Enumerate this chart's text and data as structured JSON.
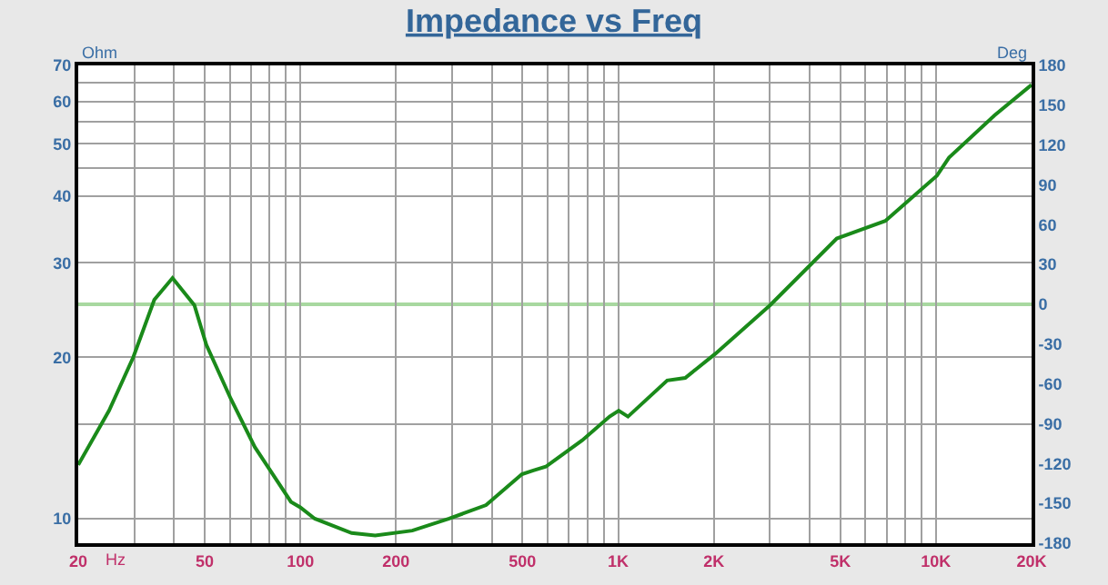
{
  "chart_data": {
    "type": "line",
    "title": "Impedance vs Freq",
    "xlabel": "Hz",
    "ylabel": "Ohm",
    "y2label": "Deg",
    "log": "xy",
    "grid": true,
    "marker": "none",
    "line_style": "solid",
    "xlim": [
      20,
      20000
    ],
    "xticks": [
      20,
      {
        "value": 30,
        "label": null
      },
      {
        "value": 40,
        "label": null
      },
      50,
      {
        "value": 60,
        "label": null
      },
      {
        "value": 70,
        "label": null
      },
      {
        "value": 80,
        "label": null
      },
      {
        "value": 90,
        "label": null
      },
      100,
      200,
      {
        "value": 300,
        "label": null
      },
      {
        "value": 400,
        "label": null
      },
      500,
      {
        "value": 600,
        "label": null
      },
      {
        "value": 700,
        "label": null
      },
      {
        "value": 800,
        "label": null
      },
      {
        "value": 900,
        "label": null
      },
      {
        "value": 1000,
        "label": "1K"
      },
      {
        "value": 2000,
        "label": "2K"
      },
      {
        "value": 3000,
        "label": null
      },
      {
        "value": 4000,
        "label": null
      },
      {
        "value": 5000,
        "label": "5K"
      },
      {
        "value": 6000,
        "label": null
      },
      {
        "value": 7000,
        "label": null
      },
      {
        "value": 8000,
        "label": null
      },
      {
        "value": 9000,
        "label": null
      },
      {
        "value": 10000,
        "label": "10K"
      },
      {
        "value": 20000,
        "label": "20K"
      }
    ],
    "ylim": [
      9,
      70
    ],
    "yticks": [
      10,
      {
        "value": 15,
        "label": null
      },
      20,
      30,
      40,
      {
        "value": 45,
        "label": null
      },
      50,
      {
        "value": 55,
        "label": null
      },
      60,
      {
        "value": 65,
        "label": null
      },
      70
    ],
    "y2lim": [
      -180,
      180
    ],
    "y2ticks": [
      -180,
      -150,
      -120,
      -90,
      -60,
      -30,
      0,
      30,
      60,
      90,
      120,
      150,
      180
    ],
    "ref_lines": [
      {
        "axis": "y2",
        "value": 0,
        "color": "#a8d8a0"
      }
    ],
    "x": [
      20,
      25,
      29.8,
      34.7,
      39.6,
      46.4,
      50.6,
      60.5,
      71.9,
      93.4,
      99.9,
      111,
      145,
      172,
      225,
      294,
      384,
      498,
      541,
      592,
      771,
      940,
      1004,
      1074,
      1427,
      1626,
      2023,
      3007,
      4875,
      6930,
      10070,
      10990,
      15290,
      20000
    ],
    "series": [
      {
        "color": "#1a8a1a",
        "values": [
          12.6,
          15.9,
          20,
          25.6,
          28.1,
          25,
          21.1,
          16.7,
          13.6,
          10.75,
          10.5,
          10,
          9.4,
          9.3,
          9.5,
          10,
          10.6,
          12.1,
          12.3,
          12.5,
          14,
          15.5,
          15.9,
          15.5,
          18.1,
          18.3,
          20.3,
          25,
          33.3,
          35.9,
          43.6,
          47.1,
          56.5,
          64.4
        ]
      }
    ]
  }
}
